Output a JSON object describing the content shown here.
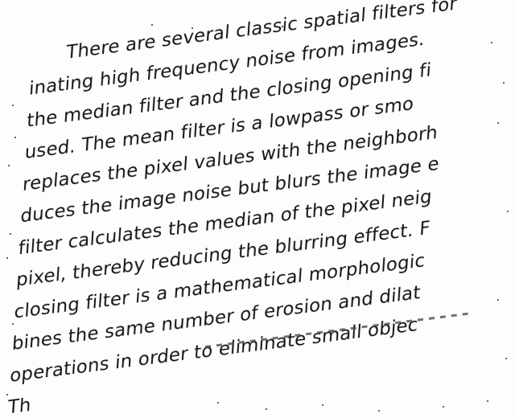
{
  "document": {
    "lines": [
      "There are several classic spatial filters for",
      "inating high frequency noise from images.",
      "the median filter and the closing opening fi",
      "used.  The mean filter is a lowpass or smo",
      "replaces the pixel values with the neighborh",
      "duces the image noise but blurs the image e",
      "filter calculates the median of the pixel neig",
      "pixel, thereby reducing the blurring effect.  F",
      "closing filter is a mathematical morphologic",
      "bines the same number of erosion and dilat",
      "operations in order to eliminate small objec",
      "Th"
    ]
  }
}
